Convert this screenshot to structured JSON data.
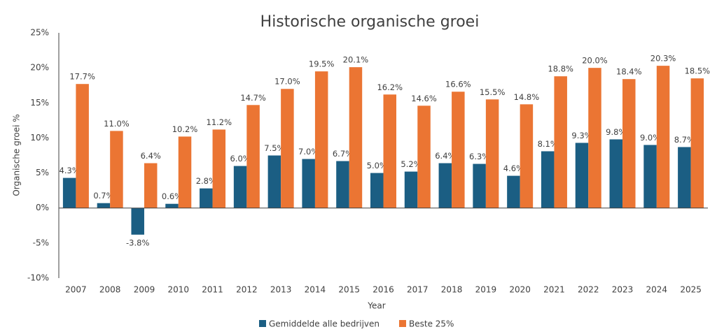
{
  "chart_data": {
    "type": "bar",
    "title": "Historische organische groei",
    "y_label": "Organische groei %",
    "x_label": "Year",
    "categories": [
      "2007",
      "2008",
      "2009",
      "2010",
      "2011",
      "2012",
      "2013",
      "2014",
      "2015",
      "2016",
      "2017",
      "2018",
      "2019",
      "2020",
      "2021",
      "2022",
      "2023",
      "2024",
      "2025"
    ],
    "series": [
      {
        "name": "Gemiddelde alle bedrijven",
        "color": "#1b5e83",
        "values": [
          4.3,
          0.7,
          -3.8,
          0.6,
          2.8,
          6.0,
          7.5,
          7.0,
          6.7,
          5.0,
          5.2,
          6.4,
          6.3,
          4.6,
          8.1,
          9.3,
          9.8,
          9.0,
          8.7
        ],
        "value_labels": [
          "4.3%",
          "0.7%",
          "-3.8%",
          "0.6%",
          "2.8%",
          "6.0%",
          "7.5%",
          "7.0%",
          "6.7%",
          "5.0%",
          "5.2%",
          "6.4%",
          "6.3%",
          "4.6%",
          "8.1%",
          "9.3%",
          "9.8%",
          "9.0%",
          "8.7%"
        ]
      },
      {
        "name": "Beste 25%",
        "color": "#eb7533",
        "values": [
          17.7,
          11.0,
          6.4,
          10.2,
          11.2,
          14.7,
          17.0,
          19.5,
          20.1,
          16.2,
          14.6,
          16.6,
          15.5,
          14.8,
          18.8,
          20.0,
          18.4,
          20.3,
          18.5
        ],
        "value_labels": [
          "17.7%",
          "11.0%",
          "6.4%",
          "10.2%",
          "11.2%",
          "14.7%",
          "17.0%",
          "19.5%",
          "20.1%",
          "16.2%",
          "14.6%",
          "16.6%",
          "15.5%",
          "14.8%",
          "18.8%",
          "20.0%",
          "18.4%",
          "20.3%",
          "18.5%"
        ]
      }
    ],
    "ylim": [
      -10,
      25
    ],
    "yticks": [
      {
        "value": -10,
        "label": "-10%"
      },
      {
        "value": -5,
        "label": "-5%"
      },
      {
        "value": 0,
        "label": "0%"
      },
      {
        "value": 5,
        "label": "5%"
      },
      {
        "value": 10,
        "label": "10%"
      },
      {
        "value": 15,
        "label": "15%"
      },
      {
        "value": 20,
        "label": "20%"
      },
      {
        "value": 25,
        "label": "25%"
      }
    ],
    "grid": false
  }
}
